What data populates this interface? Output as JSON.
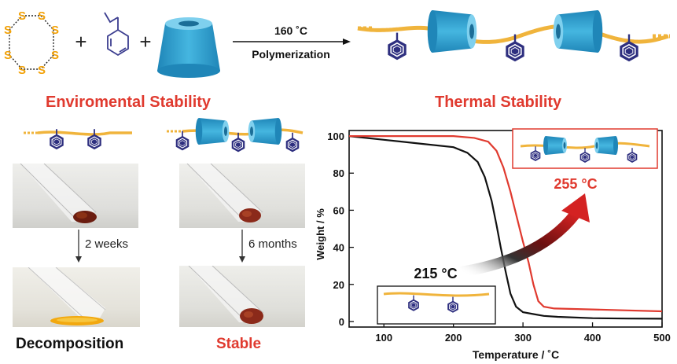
{
  "reaction": {
    "ring_atom": "S",
    "plus": "+",
    "arrow_top": "160 ˚C",
    "arrow_bottom": "Polymerization"
  },
  "left_panel": {
    "title": "Enviromental Stability",
    "step_left": "2 weeks",
    "step_right": "6 months",
    "result_left": "Decomposition",
    "result_right": "Stable"
  },
  "right_panel": {
    "title": "Thermal Stability"
  },
  "colors": {
    "accent_red": "#e03a2f",
    "chain_orange": "#f0b43c",
    "ring_blue": "#2f9fcf",
    "benzene_navy": "#2e2f7f",
    "sulfur_orange": "#f2a20a"
  },
  "chart_data": {
    "type": "line",
    "xlabel": "Temperature / ˚C",
    "ylabel": "Weight / %",
    "xlim": [
      50,
      500
    ],
    "ylim": [
      -3,
      103
    ],
    "x_ticks": [
      100,
      200,
      300,
      400,
      500
    ],
    "y_ticks": [
      0,
      20,
      40,
      60,
      80,
      100
    ],
    "annotations": [
      "215 °C",
      "255 °C"
    ],
    "series": [
      {
        "color": "#111111",
        "x": [
          50,
          100,
          150,
          200,
          220,
          235,
          245,
          255,
          262,
          268,
          275,
          282,
          290,
          300,
          315,
          330,
          350,
          400,
          450,
          500
        ],
        "y": [
          100,
          98,
          96,
          94,
          91,
          86,
          78,
          65,
          52,
          40,
          27,
          15,
          8,
          5,
          4,
          3,
          2.5,
          1.8,
          1.6,
          1.5
        ]
      },
      {
        "color": "#e03a2f",
        "x": [
          50,
          100,
          150,
          200,
          230,
          250,
          262,
          272,
          282,
          292,
          300,
          308,
          315,
          322,
          330,
          345,
          400,
          450,
          500
        ],
        "y": [
          100,
          100,
          100,
          100,
          99,
          97,
          92,
          83,
          70,
          55,
          43,
          32,
          20,
          11,
          8,
          7,
          6.5,
          6,
          5.5
        ]
      }
    ]
  }
}
